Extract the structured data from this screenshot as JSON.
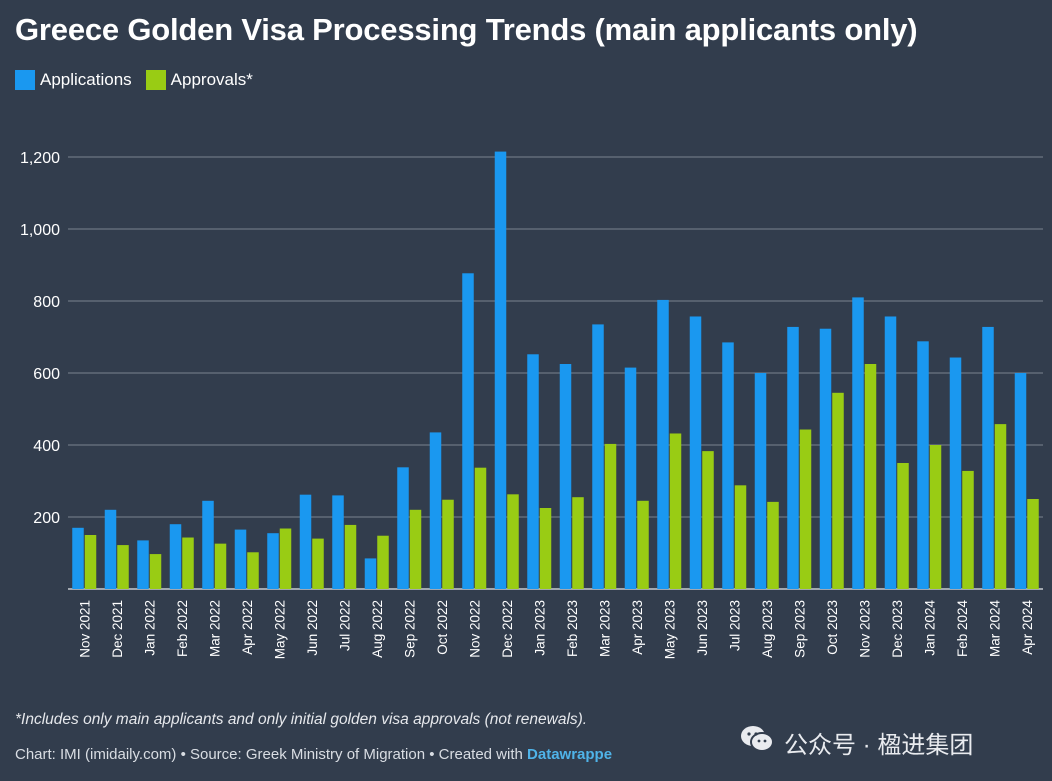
{
  "title": "Greece Golden Visa Processing Trends (main applicants only)",
  "legend": {
    "applications": "Applications",
    "approvals": "Approvals*"
  },
  "colors": {
    "applications": "#1a98f0",
    "approvals": "#99cc14",
    "background": "#323d4d",
    "grid": "#7a8390"
  },
  "chart_data": {
    "type": "bar",
    "title": "Greece Golden Visa Processing Trends (main applicants only)",
    "xlabel": "",
    "ylabel": "",
    "ylim": [
      0,
      1200
    ],
    "yticks": [
      200,
      400,
      600,
      800,
      1000,
      1200
    ],
    "ytick_labels": [
      "200",
      "400",
      "600",
      "800",
      "1,000",
      "1,200"
    ],
    "grid": true,
    "legend_position": "top-left",
    "categories": [
      "Nov 2021",
      "Dec 2021",
      "Jan 2022",
      "Feb 2022",
      "Mar 2022",
      "Apr 2022",
      "May 2022",
      "Jun 2022",
      "Jul 2022",
      "Aug 2022",
      "Sep 2022",
      "Oct 2022",
      "Nov 2022",
      "Dec 2022",
      "Jan 2023",
      "Feb 2023",
      "Mar 2023",
      "Apr 2023",
      "May 2023",
      "Jun 2023",
      "Jul 2023",
      "Aug 2023",
      "Sep 2023",
      "Oct 2023",
      "Nov 2023",
      "Dec 2023",
      "Jan 2024",
      "Feb 2024",
      "Mar 2024",
      "Apr 2024"
    ],
    "series": [
      {
        "name": "Applications",
        "values": [
          170,
          220,
          135,
          180,
          245,
          165,
          155,
          262,
          260,
          85,
          338,
          435,
          877,
          1215,
          652,
          625,
          735,
          615,
          803,
          757,
          685,
          600,
          728,
          723,
          810,
          757,
          688,
          643,
          728,
          600
        ]
      },
      {
        "name": "Approvals*",
        "values": [
          150,
          122,
          97,
          143,
          126,
          102,
          168,
          140,
          178,
          148,
          220,
          248,
          337,
          263,
          225,
          255,
          403,
          245,
          432,
          383,
          288,
          242,
          443,
          545,
          625,
          350,
          400,
          328,
          458,
          250
        ]
      }
    ]
  },
  "footnote": "*Includes only main applicants and only initial golden visa approvals (not renewals).",
  "credits": {
    "text": "Chart: IMI (imidaily.com) • Source: Greek Ministry of Migration • Created with ",
    "tool": "Datawrappe"
  },
  "watermark": {
    "text": "公众号 · 楹进集团",
    "icon": "wechat-icon"
  }
}
